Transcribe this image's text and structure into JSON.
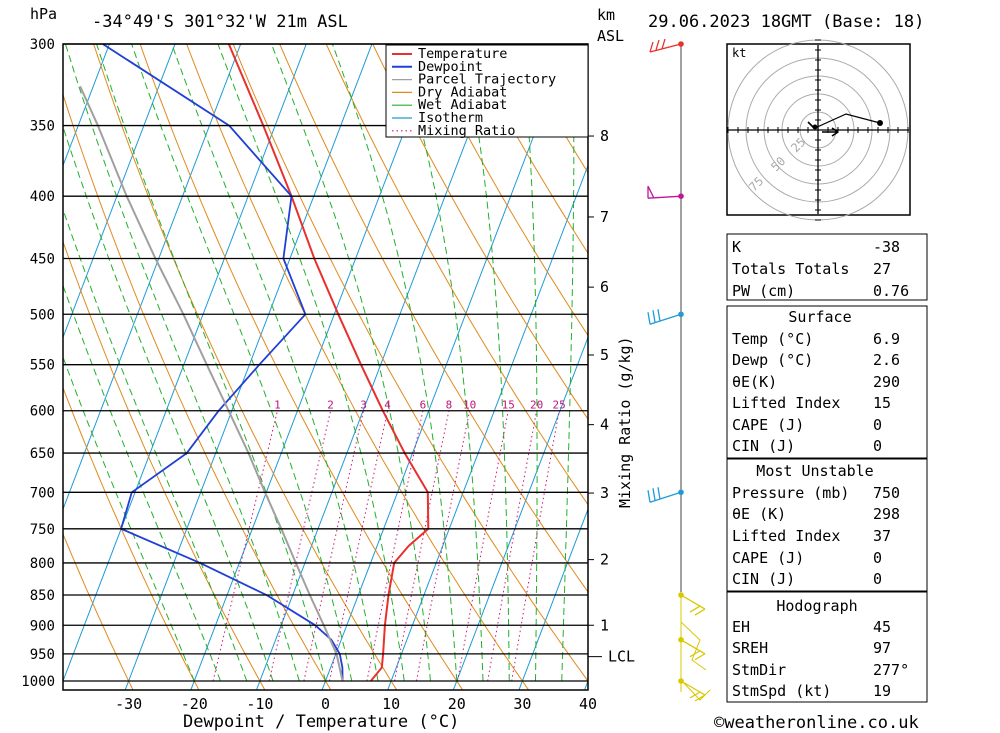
{
  "header": {
    "location": "-34°49'S  301°32'W  21m  ASL",
    "datetime": "29.06.2023  18GMT  (Base: 18)",
    "hpa_label": "hPa",
    "km_label": "km",
    "asl_label": "ASL"
  },
  "chart_data": {
    "type": "line",
    "xlabel": "Dewpoint / Temperature (°C)",
    "ylabel_right": "Mixing Ratio (g/kg)",
    "xlim": [
      -40,
      40
    ],
    "ylim_hpa": [
      300,
      1000
    ],
    "skew_per_log_decade": 70.9,
    "pressure_ticks": [
      300,
      350,
      400,
      450,
      500,
      550,
      600,
      650,
      700,
      750,
      800,
      850,
      900,
      950,
      1000
    ],
    "temp_ticks": [
      -30,
      -20,
      -10,
      0,
      10,
      20,
      30,
      40
    ],
    "km_ticks": [
      {
        "label": "8",
        "p": 357
      },
      {
        "label": "7",
        "p": 416
      },
      {
        "label": "6",
        "p": 475
      },
      {
        "label": "5",
        "p": 540
      },
      {
        "label": "4",
        "p": 616
      },
      {
        "label": "3",
        "p": 701
      },
      {
        "label": "2",
        "p": 795
      },
      {
        "label": "1",
        "p": 900
      }
    ],
    "lcl": {
      "label": "LCL",
      "p": 955
    },
    "mixing_ratio_labels": [
      "1",
      "2",
      "3",
      "4",
      "6",
      "8",
      "10",
      "15",
      "20",
      "25"
    ],
    "mixing_ratio_values": [
      1,
      2,
      3,
      4,
      6,
      8,
      10,
      15,
      20,
      25
    ],
    "legend": [
      {
        "name": "Temperature",
        "color": "#e8302c",
        "style": "solid"
      },
      {
        "name": "Dewpoint",
        "color": "#1f3fd6",
        "style": "solid"
      },
      {
        "name": "Parcel Trajectory",
        "color": "#a0a0a0",
        "style": "solid"
      },
      {
        "name": "Dry Adiabat",
        "color": "#e08a1e",
        "style": "solid"
      },
      {
        "name": "Wet Adiabat",
        "color": "#22b02a",
        "style": "solid"
      },
      {
        "name": "Isotherm",
        "color": "#1e9bd8",
        "style": "solid"
      },
      {
        "name": "Mixing Ratio",
        "color": "#d0157a",
        "style": "dotted"
      }
    ],
    "series": [
      {
        "name": "Temperature",
        "points": [
          [
            1000,
            6.9
          ],
          [
            975,
            7.8
          ],
          [
            950,
            7.2
          ],
          [
            900,
            5.8
          ],
          [
            850,
            4.6
          ],
          [
            800,
            3.6
          ],
          [
            775,
            4.8
          ],
          [
            750,
            6.8
          ],
          [
            700,
            4.6
          ],
          [
            650,
            -1.2
          ],
          [
            600,
            -7.0
          ],
          [
            550,
            -13.0
          ],
          [
            500,
            -19.4
          ],
          [
            450,
            -26.3
          ],
          [
            400,
            -33.4
          ],
          [
            350,
            -41.8
          ],
          [
            300,
            -51.8
          ]
        ]
      },
      {
        "name": "Dewpoint",
        "points": [
          [
            1000,
            2.6
          ],
          [
            975,
            1.8
          ],
          [
            950,
            0.6
          ],
          [
            925,
            -1.5
          ],
          [
            900,
            -4.8
          ],
          [
            850,
            -14.0
          ],
          [
            800,
            -26.0
          ],
          [
            750,
            -40.0
          ],
          [
            700,
            -40.5
          ],
          [
            650,
            -34.4
          ],
          [
            600,
            -32.0
          ],
          [
            550,
            -28.5
          ],
          [
            500,
            -24.4
          ],
          [
            450,
            -31.0
          ],
          [
            400,
            -33.4
          ],
          [
            350,
            -47.0
          ],
          [
            300,
            -71.0
          ]
        ]
      },
      {
        "name": "Parcel Trajectory",
        "points": [
          [
            1000,
            2.6
          ],
          [
            950,
            0.1
          ],
          [
            900,
            -3.5
          ],
          [
            850,
            -7.4
          ],
          [
            800,
            -11.4
          ],
          [
            750,
            -15.6
          ],
          [
            700,
            -20.2
          ],
          [
            650,
            -25.0
          ],
          [
            600,
            -30.5
          ],
          [
            550,
            -36.5
          ],
          [
            500,
            -43.0
          ],
          [
            450,
            -50.5
          ],
          [
            400,
            -58.5
          ],
          [
            350,
            -67.0
          ],
          [
            325,
            -72.0
          ]
        ]
      }
    ],
    "wind_barbs": [
      {
        "p": 300,
        "color": "#e8302c"
      },
      {
        "p": 400,
        "color": "#c0159a"
      },
      {
        "p": 500,
        "color": "#1e9bd8"
      },
      {
        "p": 700,
        "color": "#1e9bd8"
      },
      {
        "p": 850,
        "color": "#d8c800"
      },
      {
        "p": 925,
        "color": "#d8c800"
      },
      {
        "p": 1000,
        "color": "#d8c800"
      }
    ]
  },
  "hodograph": {
    "unit_label": "kt",
    "ring_labels": [
      "25",
      "50",
      "75"
    ]
  },
  "indices": {
    "k_label": "K",
    "k_value": "-38",
    "tt_label": "Totals Totals",
    "tt_value": "27",
    "pw_label": "PW (cm)",
    "pw_value": "0.76"
  },
  "surface": {
    "title": "Surface",
    "temp_label": "Temp (°C)",
    "temp_value": "6.9",
    "dewp_label": "Dewp (°C)",
    "dewp_value": "2.6",
    "theta_label": "θE(K)",
    "theta_value": "290",
    "li_label": "Lifted Index",
    "li_value": "15",
    "cape_label": "CAPE (J)",
    "cape_value": "0",
    "cin_label": "CIN (J)",
    "cin_value": "0"
  },
  "most_unstable": {
    "title": "Most Unstable",
    "pressure_label": "Pressure (mb)",
    "pressure_value": "750",
    "theta_label": "θE (K)",
    "theta_value": "298",
    "li_label": "Lifted Index",
    "li_value": "37",
    "cape_label": "CAPE (J)",
    "cape_value": "0",
    "cin_label": "CIN (J)",
    "cin_value": "0"
  },
  "hodo_table": {
    "title": "Hodograph",
    "eh_label": "EH",
    "eh_value": "45",
    "sreh_label": "SREH",
    "sreh_value": "97",
    "stmdir_label": "StmDir",
    "stmdir_value": "277°",
    "stmspd_label": "StmSpd (kt)",
    "stmspd_value": "19"
  },
  "footer": {
    "credit": "©weatheronline.co.uk"
  }
}
